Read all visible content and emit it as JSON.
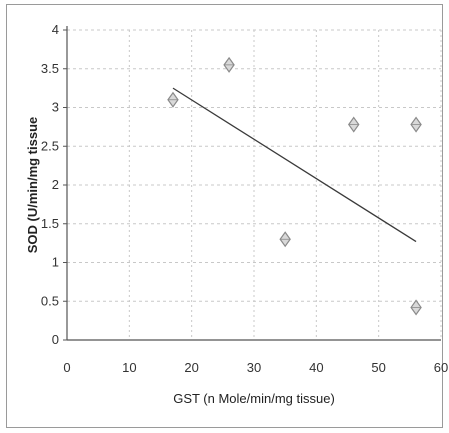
{
  "chart_data": {
    "type": "scatter",
    "title": "",
    "xlabel": "GST (n Mole/min/mg tissue)",
    "ylabel": "SOD (U/min/mg tissue",
    "xlim": [
      0,
      60
    ],
    "ylim": [
      0,
      4
    ],
    "x_ticks": [
      "0",
      "10",
      "20",
      "30",
      "40",
      "50",
      "60"
    ],
    "y_ticks": [
      "0",
      "0.5",
      "1",
      "1.5",
      "2",
      "2.5",
      "3",
      "3.5",
      "4"
    ],
    "grid": true,
    "legend": "none",
    "series": [
      {
        "x": [
          17,
          26,
          35,
          46,
          56,
          56
        ],
        "y": [
          3.1,
          3.55,
          1.3,
          2.78,
          2.78,
          0.42
        ]
      }
    ],
    "trendline": {
      "x": [
        17,
        56
      ],
      "y": [
        3.25,
        1.27
      ]
    },
    "colors": {
      "marker": "#8a8a8a",
      "line": "#3a3a3a",
      "grid": "#c8c8c8",
      "axis": "#555555"
    }
  }
}
